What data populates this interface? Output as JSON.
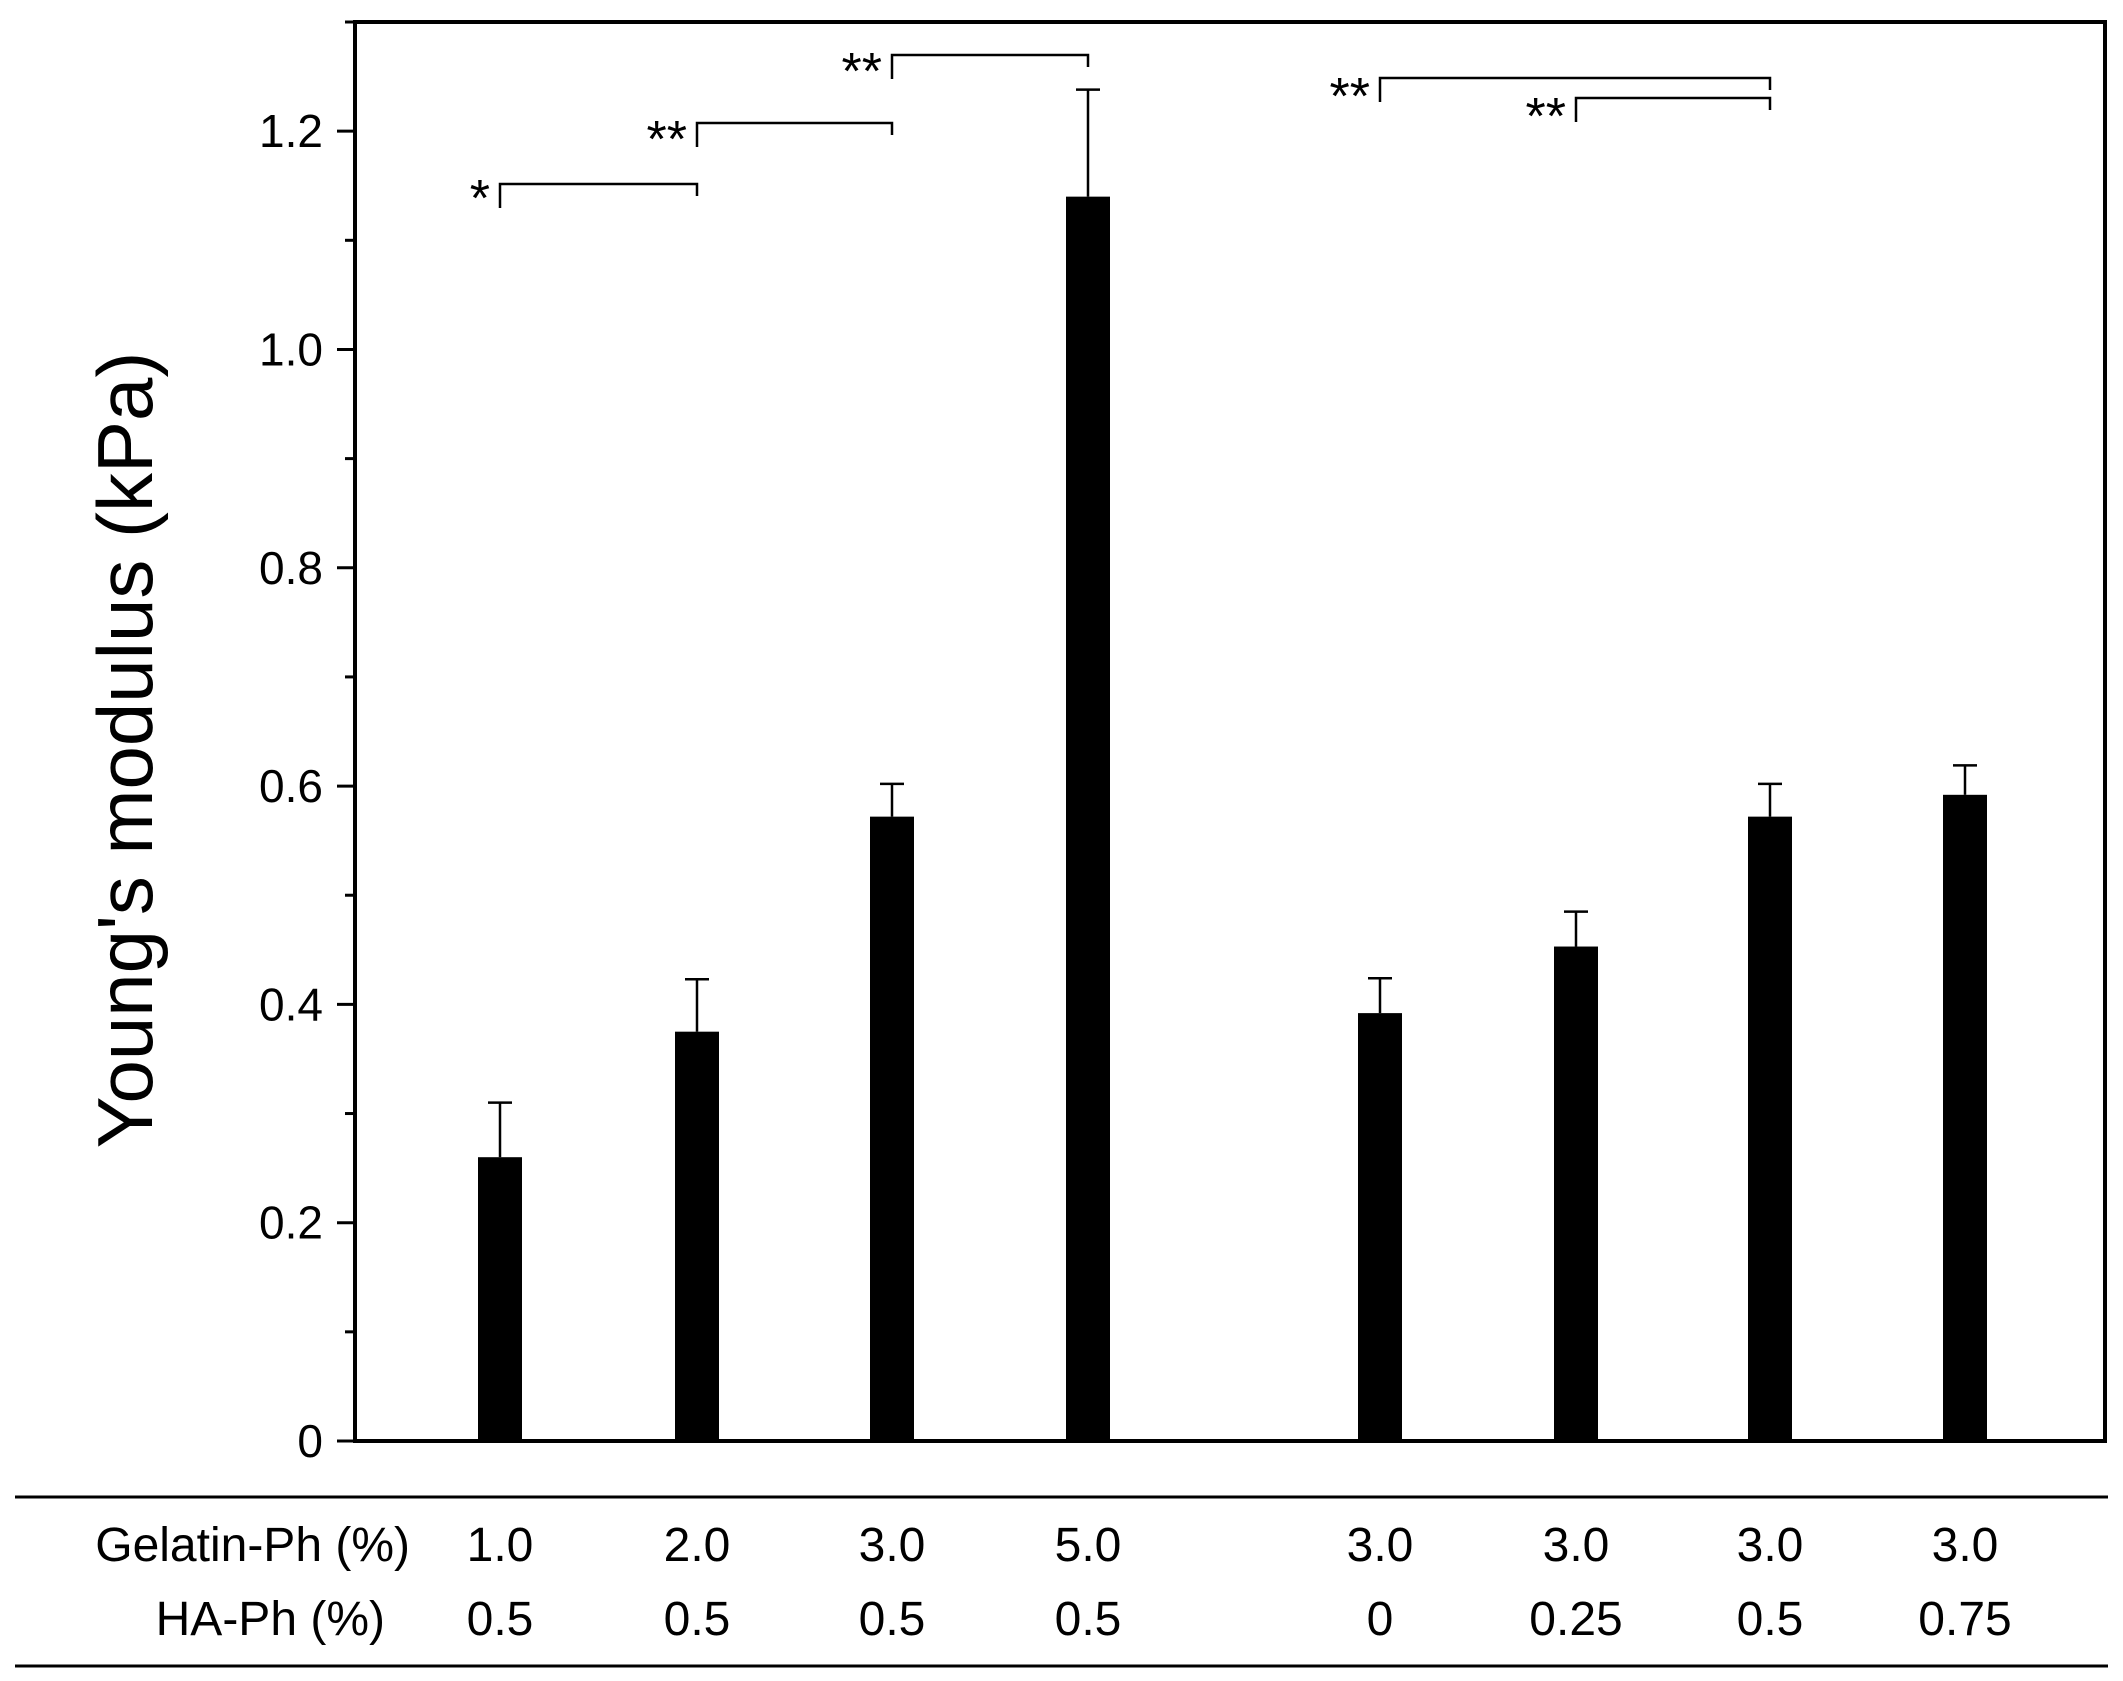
{
  "chart_data": {
    "type": "bar",
    "title": "",
    "xlabel": "",
    "ylabel": "Young's modulus (kPa)",
    "ylim": [
      0,
      1.3
    ],
    "yticks": [
      "0",
      "0.2",
      "0.4",
      "0.6",
      "0.8",
      "1.0",
      "1.2"
    ],
    "grid": false,
    "legend": "none",
    "bar_color": "#000000",
    "groups": [
      {
        "gelatin": "1.0",
        "ha": "0.5",
        "value": 0.26,
        "error": 0.05
      },
      {
        "gelatin": "2.0",
        "ha": "0.5",
        "value": 0.375,
        "error": 0.048
      },
      {
        "gelatin": "3.0",
        "ha": "0.5",
        "value": 0.572,
        "error": 0.03
      },
      {
        "gelatin": "5.0",
        "ha": "0.5",
        "value": 1.14,
        "error": 0.098
      },
      {
        "gelatin": "3.0",
        "ha": "0",
        "value": 0.392,
        "error": 0.032
      },
      {
        "gelatin": "3.0",
        "ha": "0.25",
        "value": 0.453,
        "error": 0.032
      },
      {
        "gelatin": "3.0",
        "ha": "0.5",
        "value": 0.572,
        "error": 0.03
      },
      {
        "gelatin": "3.0",
        "ha": "0.75",
        "value": 0.592,
        "error": 0.027
      }
    ],
    "row_labels": {
      "gelatin": "Gelatin-Ph (%)",
      "ha": "HA-Ph (%)"
    },
    "significance": [
      {
        "from": 0,
        "to": 1,
        "label": "*"
      },
      {
        "from": 1,
        "to": 2,
        "label": "**"
      },
      {
        "from": 2,
        "to": 3,
        "label": "**"
      },
      {
        "from": 4,
        "to": 6,
        "label": "**"
      },
      {
        "from": 5,
        "to": 6,
        "label": "**"
      }
    ]
  }
}
